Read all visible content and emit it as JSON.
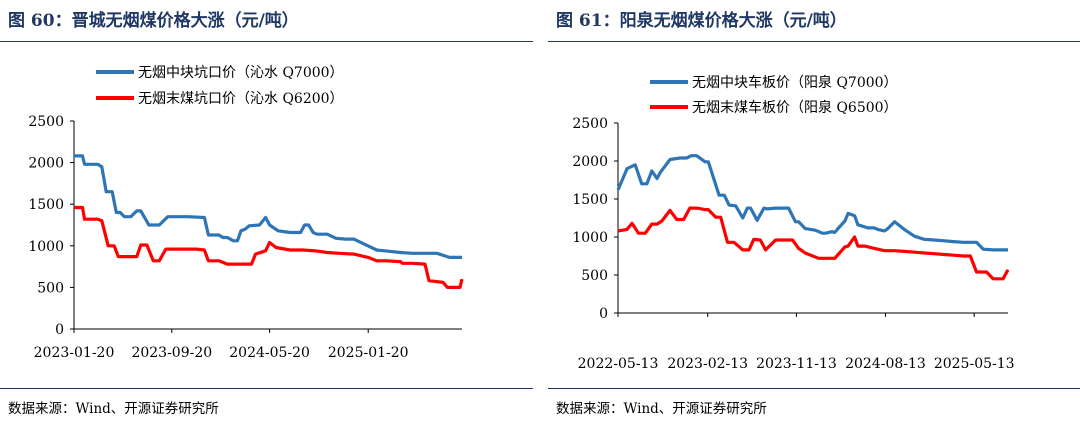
{
  "panels": [
    {
      "title": "图 60：晋城无烟煤价格大涨（元/吨）",
      "source": "数据来源：Wind、开源证券研究所",
      "chart_data": {
        "type": "line",
        "ylim": [
          0,
          2500
        ],
        "yticks": [
          0,
          500,
          1000,
          1500,
          2000,
          2500
        ],
        "xlim": [
          "2023-01-20",
          "2025-09-10"
        ],
        "xticks": [
          "2023-01-20",
          "2023-09-20",
          "2024-05-20",
          "2025-01-20"
        ],
        "legend_position": "top-left",
        "grid": false,
        "series": [
          {
            "name": "无烟中块坑口价（沁水 Q7000）",
            "color": "#2e75b6",
            "x": [
              "2023-01-20",
              "2023-02-10",
              "2023-02-15",
              "2023-03-20",
              "2023-03-30",
              "2023-04-10",
              "2023-04-25",
              "2023-05-05",
              "2023-05-15",
              "2023-05-25",
              "2023-06-10",
              "2023-06-25",
              "2023-07-05",
              "2023-07-25",
              "2023-08-20",
              "2023-09-10",
              "2023-10-20",
              "2023-10-30",
              "2023-12-10",
              "2023-12-20",
              "2024-01-15",
              "2024-01-25",
              "2024-02-05",
              "2024-02-20",
              "2024-03-01",
              "2024-03-10",
              "2024-03-20",
              "2024-03-30",
              "2024-04-25",
              "2024-05-10",
              "2024-05-20",
              "2024-06-10",
              "2024-07-10",
              "2024-08-05",
              "2024-08-15",
              "2024-08-25",
              "2024-09-05",
              "2024-09-15",
              "2024-10-10",
              "2024-11-01",
              "2024-11-25",
              "2024-12-15",
              "2025-01-10",
              "2025-02-10",
              "2025-04-10",
              "2025-05-10",
              "2025-06-10",
              "2025-07-10",
              "2025-08-10",
              "2025-09-10"
            ],
            "values": [
              2080,
              2080,
              1980,
              1980,
              1950,
              1650,
              1650,
              1400,
              1400,
              1350,
              1350,
              1420,
              1420,
              1250,
              1250,
              1350,
              1350,
              1350,
              1340,
              1130,
              1130,
              1100,
              1100,
              1060,
              1060,
              1180,
              1200,
              1240,
              1250,
              1340,
              1250,
              1180,
              1160,
              1160,
              1250,
              1250,
              1160,
              1140,
              1140,
              1090,
              1080,
              1080,
              1020,
              950,
              920,
              910,
              910,
              910,
              860,
              860
            ]
          },
          {
            "name": "无烟末煤坑口价（沁水 Q6200）",
            "color": "#ff0000",
            "x": [
              "2023-01-20",
              "2023-02-10",
              "2023-02-15",
              "2023-03-20",
              "2023-03-30",
              "2023-04-15",
              "2023-04-30",
              "2023-05-10",
              "2023-05-25",
              "2023-06-25",
              "2023-07-05",
              "2023-07-20",
              "2023-08-05",
              "2023-08-20",
              "2023-09-05",
              "2023-09-20",
              "2023-10-30",
              "2023-11-20",
              "2023-12-10",
              "2023-12-20",
              "2024-01-15",
              "2024-02-05",
              "2024-02-20",
              "2024-03-10",
              "2024-04-05",
              "2024-04-15",
              "2024-05-10",
              "2024-05-20",
              "2024-06-05",
              "2024-07-10",
              "2024-08-10",
              "2024-09-10",
              "2024-10-10",
              "2024-11-10",
              "2024-12-15",
              "2025-01-20",
              "2025-02-10",
              "2025-03-05",
              "2025-04-10",
              "2025-04-15",
              "2025-05-10",
              "2025-06-10",
              "2025-06-20",
              "2025-07-25",
              "2025-08-05",
              "2025-08-20",
              "2025-09-05",
              "2025-09-10"
            ],
            "values": [
              1460,
              1460,
              1320,
              1320,
              1300,
              1000,
              1000,
              870,
              870,
              870,
              1010,
              1010,
              820,
              820,
              960,
              960,
              960,
              960,
              950,
              820,
              820,
              780,
              780,
              780,
              780,
              900,
              940,
              1040,
              980,
              950,
              950,
              940,
              920,
              910,
              900,
              860,
              820,
              820,
              810,
              790,
              790,
              780,
              580,
              560,
              500,
              500,
              500,
              600
            ]
          }
        ]
      }
    },
    {
      "title": "图 61：阳泉无烟煤价格大涨（元/吨）",
      "source": "数据来源：Wind、开源证券研究所",
      "chart_data": {
        "type": "line",
        "ylim": [
          0,
          2500
        ],
        "yticks": [
          0,
          500,
          1000,
          1500,
          2000,
          2500
        ],
        "xlim": [
          "2022-05-13",
          "2025-08-25"
        ],
        "xticks": [
          "2022-05-13",
          "2023-02-13",
          "2023-11-13",
          "2024-08-13",
          "2025-05-13"
        ],
        "legend_position": "top-left",
        "grid": false,
        "series": [
          {
            "name": "无烟中块车板价（阳泉 Q7000）",
            "color": "#2e75b6",
            "x": [
              "2022-05-13",
              "2022-06-10",
              "2022-07-05",
              "2022-07-25",
              "2022-08-10",
              "2022-08-25",
              "2022-09-10",
              "2022-09-20",
              "2022-10-20",
              "2022-11-20",
              "2022-12-10",
              "2022-12-25",
              "2023-01-10",
              "2023-02-05",
              "2023-02-15",
              "2023-03-20",
              "2023-04-05",
              "2023-04-20",
              "2023-05-10",
              "2023-06-01",
              "2023-06-15",
              "2023-06-25",
              "2023-07-15",
              "2023-08-05",
              "2023-08-15",
              "2023-09-10",
              "2023-10-20",
              "2023-11-10",
              "2023-11-20",
              "2023-12-10",
              "2024-01-10",
              "2024-02-01",
              "2024-02-10",
              "2024-03-01",
              "2024-03-10",
              "2024-03-20",
              "2024-04-10",
              "2024-04-20",
              "2024-05-10",
              "2024-05-20",
              "2024-06-20",
              "2024-07-10",
              "2024-07-20",
              "2024-08-10",
              "2024-08-20",
              "2024-09-10",
              "2024-10-10",
              "2024-11-10",
              "2024-12-10",
              "2025-01-10",
              "2025-02-10",
              "2025-03-10",
              "2025-04-10",
              "2025-05-20",
              "2025-06-10",
              "2025-07-10",
              "2025-08-25"
            ],
            "values": [
              1620,
              1900,
              1950,
              1700,
              1700,
              1870,
              1770,
              1850,
              2020,
              2040,
              2040,
              2070,
              2070,
              1990,
              1990,
              1550,
              1550,
              1420,
              1410,
              1250,
              1380,
              1380,
              1220,
              1380,
              1370,
              1380,
              1380,
              1200,
              1200,
              1110,
              1090,
              1050,
              1050,
              1070,
              1060,
              1110,
              1210,
              1310,
              1280,
              1160,
              1120,
              1120,
              1100,
              1080,
              1110,
              1200,
              1100,
              1010,
              970,
              960,
              950,
              940,
              930,
              930,
              840,
              830,
              830
            ]
          },
          {
            "name": "无烟末煤车板价（阳泉 Q6500）",
            "color": "#ff0000",
            "x": [
              "2022-05-13",
              "2022-06-10",
              "2022-06-25",
              "2022-07-15",
              "2022-08-05",
              "2022-08-25",
              "2022-09-10",
              "2022-09-25",
              "2022-10-20",
              "2022-11-10",
              "2022-12-01",
              "2022-12-20",
              "2023-01-10",
              "2023-02-05",
              "2023-02-15",
              "2023-03-10",
              "2023-03-25",
              "2023-04-15",
              "2023-05-05",
              "2023-06-01",
              "2023-06-10",
              "2023-06-20",
              "2023-07-05",
              "2023-07-25",
              "2023-08-10",
              "2023-09-10",
              "2023-10-20",
              "2023-11-01",
              "2023-11-20",
              "2023-12-10",
              "2024-01-20",
              "2024-02-10",
              "2024-02-25",
              "2024-03-10",
              "2024-04-10",
              "2024-04-20",
              "2024-05-10",
              "2024-05-20",
              "2024-06-10",
              "2024-07-10",
              "2024-08-10",
              "2024-09-10",
              "2024-10-10",
              "2024-11-10",
              "2024-12-10",
              "2025-01-10",
              "2025-02-10",
              "2025-03-10",
              "2025-04-10",
              "2025-05-01",
              "2025-05-20",
              "2025-06-20",
              "2025-07-10",
              "2025-08-10",
              "2025-08-25"
            ],
            "values": [
              1080,
              1100,
              1180,
              1050,
              1050,
              1170,
              1170,
              1210,
              1350,
              1230,
              1230,
              1380,
              1380,
              1360,
              1360,
              1260,
              1260,
              930,
              930,
              830,
              830,
              830,
              970,
              960,
              830,
              960,
              960,
              960,
              850,
              790,
              720,
              720,
              720,
              720,
              870,
              880,
              1000,
              880,
              880,
              850,
              820,
              820,
              810,
              800,
              790,
              780,
              770,
              760,
              750,
              750,
              540,
              540,
              450,
              450,
              570
            ]
          }
        ]
      }
    }
  ]
}
